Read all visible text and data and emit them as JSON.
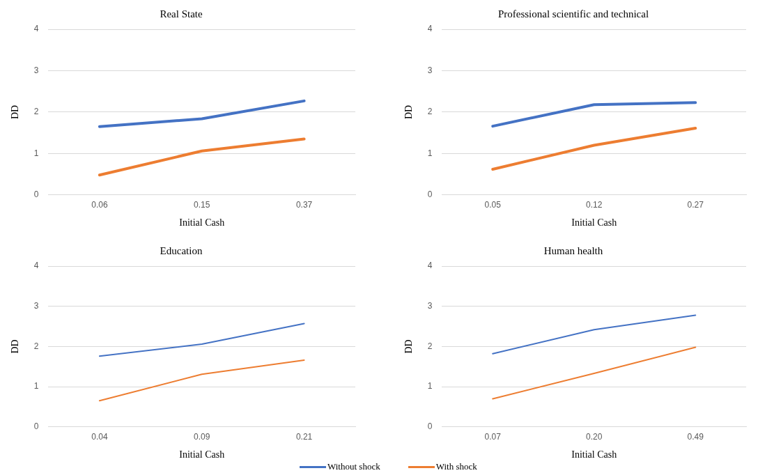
{
  "chart_data": [
    {
      "type": "line",
      "title": "Real State",
      "xlabel": "Initial Cash",
      "ylabel": "DD",
      "categories": [
        "0.06",
        "0.15",
        "0.37"
      ],
      "ylim": [
        0,
        4
      ],
      "yticks": [
        0,
        1,
        2,
        3,
        4
      ],
      "grid": "y",
      "legend": false,
      "marker": "none",
      "line_style": "solid",
      "series": [
        {
          "color": "#4472c4",
          "values": [
            1.65,
            1.84,
            2.27
          ]
        },
        {
          "color": "#ed7d31",
          "values": [
            0.48,
            1.06,
            1.35
          ]
        }
      ]
    },
    {
      "type": "line",
      "title": "Professional scientific and technical",
      "xlabel": "Initial Cash",
      "ylabel": "DD",
      "categories": [
        "0.05",
        "0.12",
        "0.27"
      ],
      "ylim": [
        0,
        4
      ],
      "yticks": [
        0,
        1,
        2,
        3,
        4
      ],
      "grid": "y",
      "legend": false,
      "marker": "none",
      "line_style": "solid",
      "series": [
        {
          "color": "#4472c4",
          "values": [
            1.66,
            2.18,
            2.23
          ]
        },
        {
          "color": "#ed7d31",
          "values": [
            0.62,
            1.2,
            1.61
          ]
        }
      ]
    },
    {
      "type": "line",
      "title": "Education",
      "xlabel": "Initial Cash",
      "ylabel": "DD",
      "categories": [
        "0.04",
        "0.09",
        "0.21"
      ],
      "ylim": [
        0,
        4
      ],
      "yticks": [
        0,
        1,
        2,
        3,
        4
      ],
      "grid": "y",
      "legend": false,
      "marker": "none",
      "line_style": "solid",
      "series": [
        {
          "color": "#4472c4",
          "values": [
            1.76,
            2.06,
            2.57
          ]
        },
        {
          "color": "#ed7d31",
          "values": [
            0.65,
            1.31,
            1.66
          ]
        }
      ]
    },
    {
      "type": "line",
      "title": "Human health",
      "xlabel": "Initial Cash",
      "ylabel": "DD",
      "categories": [
        "0.07",
        "0.20",
        "0.49"
      ],
      "ylim": [
        0,
        4
      ],
      "yticks": [
        0,
        1,
        2,
        3,
        4
      ],
      "grid": "y",
      "legend": "bottom",
      "marker": "none",
      "line_style": "solid",
      "series": [
        {
          "name": "Without shock",
          "color": "#4472c4",
          "values": [
            1.82,
            2.42,
            2.78
          ]
        },
        {
          "name": "With shock",
          "color": "#ed7d31",
          "values": [
            0.7,
            1.33,
            1.98
          ]
        }
      ]
    }
  ]
}
